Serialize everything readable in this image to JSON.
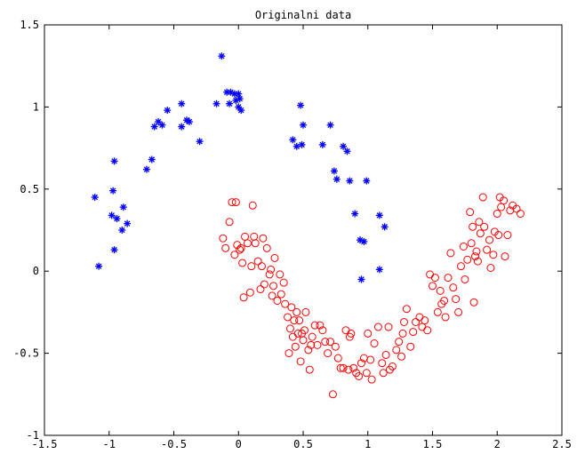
{
  "chart_data": {
    "type": "scatter",
    "title": "Originalni data",
    "xlabel": "",
    "ylabel": "",
    "xlim": [
      -1.5,
      2.5
    ],
    "ylim": [
      -1,
      1.5
    ],
    "xticks": [
      -1.5,
      -1,
      -0.5,
      0,
      0.5,
      1,
      1.5,
      2,
      2.5
    ],
    "xtick_labels": [
      "-1.5",
      "-1",
      "-0.5",
      "0",
      "0.5",
      "1",
      "1.5",
      "2",
      "2.5"
    ],
    "yticks": [
      -1,
      -0.5,
      0,
      0.5,
      1,
      1.5
    ],
    "ytick_labels": [
      "-1",
      "-0.5",
      "0",
      "0.5",
      "1",
      "1.5"
    ],
    "grid": false,
    "series": [
      {
        "marker": "asterisk",
        "color": "#0000ff",
        "points": [
          [
            -1.11,
            0.45
          ],
          [
            -1.08,
            0.03
          ],
          [
            -0.96,
            0.67
          ],
          [
            -0.97,
            0.49
          ],
          [
            -0.98,
            0.34
          ],
          [
            -0.94,
            0.32
          ],
          [
            -0.96,
            0.13
          ],
          [
            -0.89,
            0.39
          ],
          [
            -0.9,
            0.25
          ],
          [
            -0.86,
            0.29
          ],
          [
            -0.71,
            0.62
          ],
          [
            -0.67,
            0.68
          ],
          [
            -0.65,
            0.88
          ],
          [
            -0.62,
            0.91
          ],
          [
            -0.59,
            0.89
          ],
          [
            -0.55,
            0.98
          ],
          [
            -0.44,
            0.88
          ],
          [
            -0.44,
            1.02
          ],
          [
            -0.4,
            0.92
          ],
          [
            -0.38,
            0.91
          ],
          [
            -0.3,
            0.79
          ],
          [
            -0.17,
            1.02
          ],
          [
            -0.13,
            1.31
          ],
          [
            -0.09,
            1.09
          ],
          [
            -0.07,
            1.02
          ],
          [
            -0.06,
            1.09
          ],
          [
            -0.03,
            1.08
          ],
          [
            -0.02,
            1.04
          ],
          [
            0.0,
            1.08
          ],
          [
            0.01,
            1.05
          ],
          [
            0.0,
            1.0
          ],
          [
            0.02,
            0.98
          ],
          [
            0.42,
            0.8
          ],
          [
            0.45,
            0.76
          ],
          [
            0.48,
            1.01
          ],
          [
            0.5,
            0.89
          ],
          [
            0.49,
            0.77
          ],
          [
            0.65,
            0.77
          ],
          [
            0.71,
            0.89
          ],
          [
            0.74,
            0.61
          ],
          [
            0.76,
            0.56
          ],
          [
            0.81,
            0.76
          ],
          [
            0.84,
            0.73
          ],
          [
            0.86,
            0.55
          ],
          [
            0.9,
            0.35
          ],
          [
            0.94,
            0.19
          ],
          [
            0.95,
            -0.05
          ],
          [
            0.97,
            0.18
          ],
          [
            0.99,
            0.55
          ],
          [
            1.09,
            0.34
          ],
          [
            1.09,
            0.01
          ],
          [
            1.13,
            0.27
          ]
        ]
      },
      {
        "marker": "circle",
        "color": "#ff0000",
        "points": [
          [
            -0.12,
            0.2
          ],
          [
            -0.1,
            0.14
          ],
          [
            -0.07,
            0.3
          ],
          [
            -0.05,
            0.42
          ],
          [
            -0.03,
            0.1
          ],
          [
            -0.01,
            0.16
          ],
          [
            -0.02,
            0.42
          ],
          [
            0.01,
            0.13
          ],
          [
            0.03,
            0.05
          ],
          [
            0.02,
            0.14
          ],
          [
            0.04,
            -0.16
          ],
          [
            0.05,
            0.21
          ],
          [
            0.07,
            0.17
          ],
          [
            0.09,
            -0.13
          ],
          [
            0.1,
            0.03
          ],
          [
            0.11,
            0.4
          ],
          [
            0.12,
            0.21
          ],
          [
            0.13,
            0.17
          ],
          [
            0.15,
            0.06
          ],
          [
            0.17,
            -0.11
          ],
          [
            0.18,
            0.03
          ],
          [
            0.19,
            0.2
          ],
          [
            0.2,
            -0.08
          ],
          [
            0.22,
            0.14
          ],
          [
            0.24,
            -0.02
          ],
          [
            0.25,
            0.01
          ],
          [
            0.26,
            -0.15
          ],
          [
            0.27,
            -0.09
          ],
          [
            0.28,
            0.08
          ],
          [
            0.3,
            -0.18
          ],
          [
            0.32,
            -0.02
          ],
          [
            0.33,
            -0.14
          ],
          [
            0.35,
            -0.07
          ],
          [
            0.36,
            -0.2
          ],
          [
            0.38,
            -0.28
          ],
          [
            0.39,
            -0.5
          ],
          [
            0.4,
            -0.35
          ],
          [
            0.41,
            -0.22
          ],
          [
            0.42,
            -0.4
          ],
          [
            0.43,
            -0.3
          ],
          [
            0.44,
            -0.46
          ],
          [
            0.45,
            -0.25
          ],
          [
            0.46,
            -0.38
          ],
          [
            0.47,
            -0.3
          ],
          [
            0.48,
            -0.55
          ],
          [
            0.49,
            -0.38
          ],
          [
            0.5,
            -0.42
          ],
          [
            0.51,
            -0.36
          ],
          [
            0.52,
            -0.25
          ],
          [
            0.54,
            -0.48
          ],
          [
            0.55,
            -0.6
          ],
          [
            0.56,
            -0.45
          ],
          [
            0.57,
            -0.4
          ],
          [
            0.59,
            -0.33
          ],
          [
            0.61,
            -0.45
          ],
          [
            0.63,
            -0.33
          ],
          [
            0.65,
            -0.36
          ],
          [
            0.67,
            -0.43
          ],
          [
            0.69,
            -0.5
          ],
          [
            0.71,
            -0.43
          ],
          [
            0.73,
            -0.75
          ],
          [
            0.75,
            -0.46
          ],
          [
            0.77,
            -0.53
          ],
          [
            0.79,
            -0.59
          ],
          [
            0.81,
            -0.59
          ],
          [
            0.83,
            -0.36
          ],
          [
            0.85,
            -0.6
          ],
          [
            0.86,
            -0.4
          ],
          [
            0.87,
            -0.38
          ],
          [
            0.89,
            -0.59
          ],
          [
            0.91,
            -0.62
          ],
          [
            0.93,
            -0.64
          ],
          [
            0.95,
            -0.56
          ],
          [
            0.97,
            -0.53
          ],
          [
            0.99,
            -0.62
          ],
          [
            1.0,
            -0.38
          ],
          [
            1.02,
            -0.54
          ],
          [
            1.03,
            -0.66
          ],
          [
            1.05,
            -0.44
          ],
          [
            1.08,
            -0.34
          ],
          [
            1.11,
            -0.56
          ],
          [
            1.12,
            -0.62
          ],
          [
            1.14,
            -0.51
          ],
          [
            1.16,
            -0.34
          ],
          [
            1.17,
            -0.6
          ],
          [
            1.19,
            -0.58
          ],
          [
            1.22,
            -0.48
          ],
          [
            1.24,
            -0.43
          ],
          [
            1.26,
            -0.52
          ],
          [
            1.27,
            -0.38
          ],
          [
            1.28,
            -0.31
          ],
          [
            1.3,
            -0.23
          ],
          [
            1.33,
            -0.46
          ],
          [
            1.35,
            -0.37
          ],
          [
            1.37,
            -0.31
          ],
          [
            1.4,
            -0.28
          ],
          [
            1.42,
            -0.34
          ],
          [
            1.44,
            -0.3
          ],
          [
            1.46,
            -0.36
          ],
          [
            1.48,
            -0.02
          ],
          [
            1.5,
            -0.09
          ],
          [
            1.52,
            -0.04
          ],
          [
            1.54,
            -0.25
          ],
          [
            1.56,
            -0.12
          ],
          [
            1.57,
            -0.2
          ],
          [
            1.59,
            -0.18
          ],
          [
            1.6,
            -0.28
          ],
          [
            1.62,
            -0.04
          ],
          [
            1.64,
            0.11
          ],
          [
            1.66,
            -0.1
          ],
          [
            1.68,
            -0.17
          ],
          [
            1.7,
            -0.25
          ],
          [
            1.72,
            0.03
          ],
          [
            1.74,
            0.15
          ],
          [
            1.75,
            -0.05
          ],
          [
            1.77,
            0.07
          ],
          [
            1.79,
            0.36
          ],
          [
            1.8,
            0.17
          ],
          [
            1.81,
            0.27
          ],
          [
            1.82,
            -0.19
          ],
          [
            1.83,
            0.09
          ],
          [
            1.84,
            0.12
          ],
          [
            1.85,
            0.06
          ],
          [
            1.86,
            0.3
          ],
          [
            1.87,
            0.23
          ],
          [
            1.89,
            0.45
          ],
          [
            1.9,
            0.27
          ],
          [
            1.92,
            0.13
          ],
          [
            1.94,
            0.19
          ],
          [
            1.95,
            0.02
          ],
          [
            1.97,
            0.1
          ],
          [
            1.98,
            0.24
          ],
          [
            2.0,
            0.35
          ],
          [
            2.01,
            0.22
          ],
          [
            2.02,
            0.45
          ],
          [
            2.03,
            0.39
          ],
          [
            2.05,
            0.43
          ],
          [
            2.06,
            0.09
          ],
          [
            2.08,
            0.22
          ],
          [
            2.1,
            0.37
          ],
          [
            2.12,
            0.4
          ],
          [
            2.15,
            0.38
          ],
          [
            2.18,
            0.35
          ]
        ]
      }
    ]
  }
}
